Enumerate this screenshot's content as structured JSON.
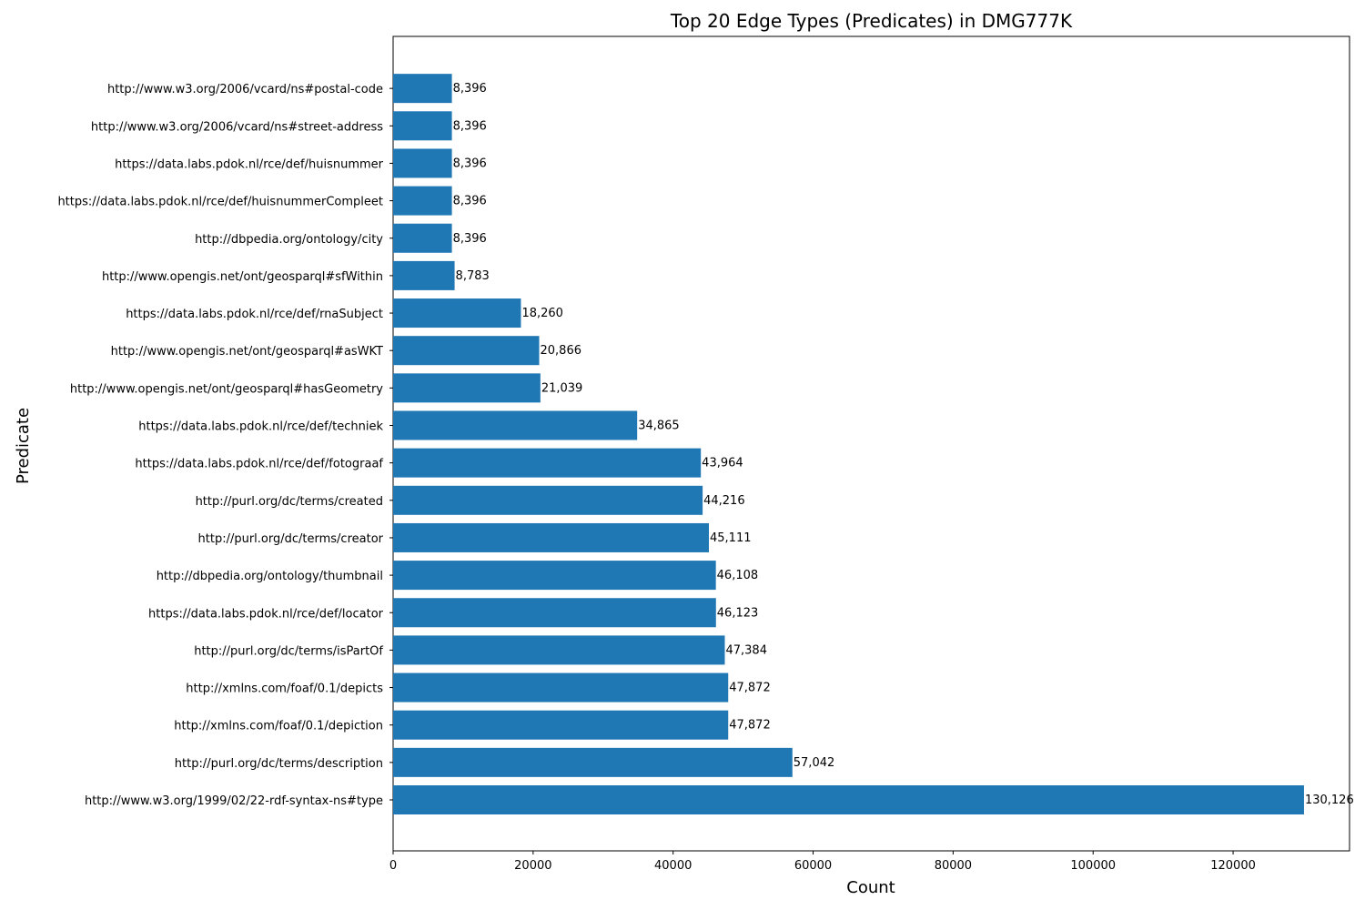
{
  "chart_data": {
    "type": "bar",
    "orientation": "horizontal",
    "title": "Top 20 Edge Types (Predicates) in DMG777K",
    "xlabel": "Count",
    "ylabel": "Predicate",
    "xlim": [
      0,
      136632
    ],
    "xticks": [
      0,
      20000,
      40000,
      60000,
      80000,
      100000,
      120000
    ],
    "grid": false,
    "bar_color": "#1f77b4",
    "categories": [
      "http://www.w3.org/1999/02/22-rdf-syntax-ns#type",
      "http://purl.org/dc/terms/description",
      "http://xmlns.com/foaf/0.1/depiction",
      "http://xmlns.com/foaf/0.1/depicts",
      "http://purl.org/dc/terms/isPartOf",
      "https://data.labs.pdok.nl/rce/def/locator",
      "http://dbpedia.org/ontology/thumbnail",
      "http://purl.org/dc/terms/creator",
      "http://purl.org/dc/terms/created",
      "https://data.labs.pdok.nl/rce/def/fotograaf",
      "https://data.labs.pdok.nl/rce/def/techniek",
      "http://www.opengis.net/ont/geosparql#hasGeometry",
      "http://www.opengis.net/ont/geosparql#asWKT",
      "https://data.labs.pdok.nl/rce/def/rnaSubject",
      "http://www.opengis.net/ont/geosparql#sfWithin",
      "http://dbpedia.org/ontology/city",
      "https://data.labs.pdok.nl/rce/def/huisnummerCompleet",
      "https://data.labs.pdok.nl/rce/def/huisnummer",
      "http://www.w3.org/2006/vcard/ns#street-address",
      "http://www.w3.org/2006/vcard/ns#postal-code"
    ],
    "values": [
      130126,
      57042,
      47872,
      47872,
      47384,
      46123,
      46108,
      45111,
      44216,
      43964,
      34865,
      21039,
      20866,
      18260,
      8783,
      8396,
      8396,
      8396,
      8396,
      8396
    ],
    "value_labels": [
      "130,126",
      "57,042",
      "47,872",
      "47,872",
      "47,384",
      "46,123",
      "46,108",
      "45,111",
      "44,216",
      "43,964",
      "34,865",
      "21,039",
      "20,866",
      "18,260",
      "8,783",
      "8,396",
      "8,396",
      "8,396",
      "8,396",
      "8,396"
    ]
  }
}
